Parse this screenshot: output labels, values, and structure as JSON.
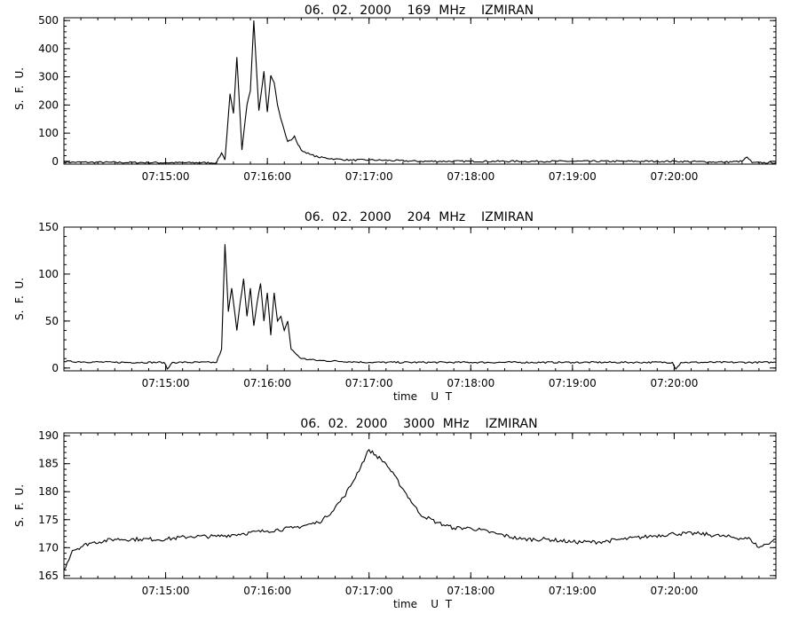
{
  "chart_data": [
    {
      "type": "line",
      "title": "06.  02.  2000    169  MHz    IZMIRAN",
      "ylabel": "S.  F.  U.",
      "xlabel": "",
      "xlim": [
        "07:14:00",
        "07:21:00"
      ],
      "ylim": [
        -10,
        510
      ],
      "yticks": [
        0,
        100,
        200,
        300,
        400,
        500
      ],
      "xticks": [
        "07:15:00",
        "07:16:00",
        "07:17:00",
        "07:18:00",
        "07:19:00",
        "07:20:00"
      ],
      "series": [
        {
          "x": [
            "07:14:00",
            "07:15:00",
            "07:15:30",
            "07:15:33",
            "07:15:35",
            "07:15:38",
            "07:15:40",
            "07:15:42",
            "07:15:45",
            "07:15:48",
            "07:15:50",
            "07:15:52",
            "07:15:55",
            "07:15:58",
            "07:16:00",
            "07:16:02",
            "07:16:04",
            "07:16:06",
            "07:16:08",
            "07:16:10",
            "07:16:12",
            "07:16:14",
            "07:16:16",
            "07:16:18",
            "07:16:20",
            "07:16:25",
            "07:16:30",
            "07:16:40",
            "07:16:50",
            "07:17:00",
            "07:17:30",
            "07:18:00",
            "07:18:30",
            "07:19:00",
            "07:19:30",
            "07:20:00",
            "07:20:30",
            "07:20:40",
            "07:20:43",
            "07:20:46",
            "07:20:50",
            "07:21:00"
          ],
          "values": [
            -3,
            -5,
            -5,
            30,
            5,
            240,
            170,
            370,
            40,
            200,
            250,
            500,
            180,
            320,
            175,
            305,
            280,
            200,
            150,
            110,
            70,
            75,
            90,
            60,
            40,
            25,
            15,
            8,
            4,
            5,
            0,
            0,
            0,
            0,
            0,
            0,
            -3,
            0,
            15,
            -5,
            -5,
            -5
          ]
        }
      ]
    },
    {
      "type": "line",
      "title": "06.  02.  2000    204  MHz    IZMIRAN",
      "ylabel": "S.  F.  U.",
      "xlabel": "time    U  T",
      "xlim": [
        "07:14:00",
        "07:21:00"
      ],
      "ylim": [
        -3,
        150
      ],
      "yticks": [
        0,
        50,
        100,
        150
      ],
      "xticks": [
        "07:15:00",
        "07:16:00",
        "07:17:00",
        "07:18:00",
        "07:19:00",
        "07:20:00"
      ],
      "series": [
        {
          "x": [
            "07:14:00",
            "07:14:30",
            "07:14:59",
            "07:15:01",
            "07:15:04",
            "07:15:30",
            "07:15:33",
            "07:15:35",
            "07:15:37",
            "07:15:39",
            "07:15:42",
            "07:15:44",
            "07:15:46",
            "07:15:48",
            "07:15:50",
            "07:15:52",
            "07:15:54",
            "07:15:56",
            "07:15:58",
            "07:16:00",
            "07:16:02",
            "07:16:04",
            "07:16:06",
            "07:16:08",
            "07:16:10",
            "07:16:12",
            "07:16:14",
            "07:16:20",
            "07:16:30",
            "07:17:00",
            "07:18:00",
            "07:19:00",
            "07:19:59",
            "07:20:01",
            "07:20:04",
            "07:21:00"
          ],
          "values": [
            7,
            6,
            6,
            -1,
            6,
            6,
            20,
            132,
            60,
            85,
            40,
            70,
            95,
            55,
            85,
            45,
            70,
            90,
            50,
            80,
            35,
            80,
            50,
            55,
            40,
            50,
            20,
            10,
            8,
            6,
            6,
            6,
            6,
            -1,
            6,
            6
          ]
        }
      ]
    },
    {
      "type": "line",
      "title": "06.  02.  2000    3000  MHz    IZMIRAN",
      "ylabel": "S.  F.  U.",
      "xlabel": "time    U  T",
      "xlim": [
        "07:14:00",
        "07:21:00"
      ],
      "ylim": [
        164.5,
        190.5
      ],
      "yticks": [
        165,
        170,
        175,
        180,
        185,
        190
      ],
      "xticks": [
        "07:15:00",
        "07:16:00",
        "07:17:00",
        "07:18:00",
        "07:19:00",
        "07:20:00"
      ],
      "series": [
        {
          "x": [
            "07:14:00",
            "07:14:05",
            "07:14:15",
            "07:14:30",
            "07:14:45",
            "07:15:00",
            "07:15:15",
            "07:15:30",
            "07:15:45",
            "07:16:00",
            "07:16:15",
            "07:16:30",
            "07:16:35",
            "07:16:45",
            "07:16:50",
            "07:17:00",
            "07:17:10",
            "07:17:20",
            "07:17:30",
            "07:17:40",
            "07:17:50",
            "07:18:00",
            "07:18:15",
            "07:18:30",
            "07:18:45",
            "07:19:00",
            "07:19:15",
            "07:19:30",
            "07:19:45",
            "07:20:00",
            "07:20:15",
            "07:20:30",
            "07:20:45",
            "07:20:50",
            "07:21:00"
          ],
          "values": [
            166,
            169.5,
            170.8,
            171.5,
            171.5,
            171.5,
            172,
            172,
            172.5,
            173,
            173.5,
            174.5,
            175.5,
            179,
            181.5,
            187.5,
            185,
            180.5,
            176,
            174.5,
            173.5,
            173.5,
            172.5,
            171.5,
            171.5,
            171,
            171,
            171.5,
            172,
            172.5,
            172.5,
            172,
            171.5,
            170,
            171.5
          ]
        }
      ]
    }
  ]
}
